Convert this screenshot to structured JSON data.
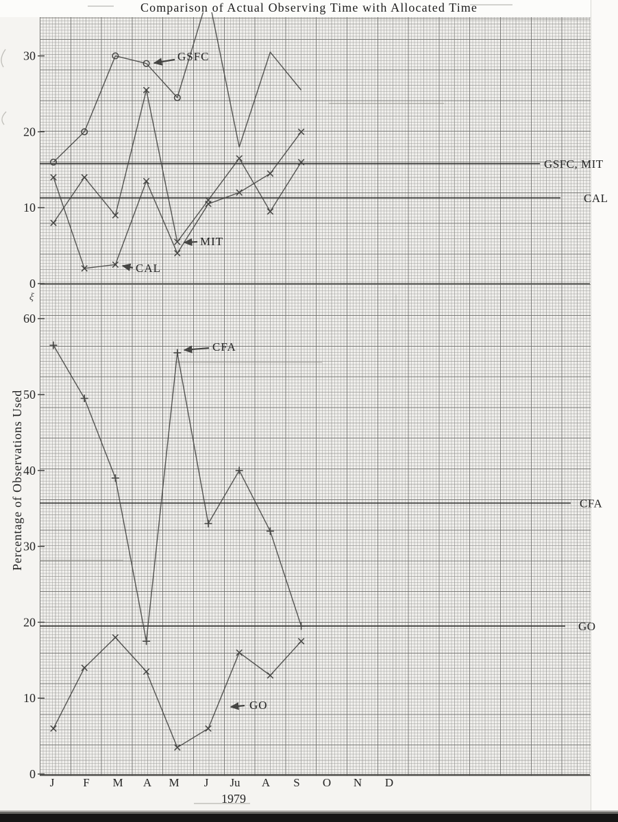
{
  "page": {
    "title": "Comparison of Actual Observing Time with Allocated Time",
    "x_axis_year": "1979",
    "y_axis_label": "Percentage of Observations Used",
    "stray_mark": "ξ"
  },
  "months": [
    "J",
    "F",
    "M",
    "A",
    "M",
    "J",
    "Ju",
    "A",
    "S",
    "O",
    "N",
    "D"
  ],
  "chart_data": [
    {
      "type": "line",
      "panel": "top",
      "title": "Comparison of Actual Observing Time with Allocated Time",
      "xlabel": "1979",
      "ylabel": "Percentage of Observations Used",
      "categories": [
        "J",
        "F",
        "M",
        "A",
        "M",
        "J",
        "Ju",
        "A",
        "S"
      ],
      "yticks": [
        0,
        10,
        20,
        30
      ],
      "ylim": [
        0,
        31
      ],
      "grid": true,
      "series": [
        {
          "name": "GSFC",
          "marker": "circle",
          "marker_count": 5,
          "values": [
            16,
            20,
            30,
            29,
            24.5,
            38,
            18,
            30.5,
            25.5
          ],
          "note": "June peak runs off the top of the grid; line clipped at paper edge"
        },
        {
          "name": "MIT",
          "marker": "x",
          "values": [
            8,
            14,
            9,
            25.5,
            5.5,
            11,
            16.5,
            9.5,
            16
          ]
        },
        {
          "name": "CAL",
          "marker": "x",
          "values": [
            14,
            2,
            2.5,
            13.5,
            4,
            10.5,
            12,
            14.5,
            20
          ]
        }
      ],
      "allocated_lines": [
        {
          "label": "GSFC, MIT",
          "value": 15.8
        },
        {
          "label": "CAL",
          "value": 11.3
        }
      ]
    },
    {
      "type": "line",
      "panel": "bottom",
      "categories": [
        "J",
        "F",
        "M",
        "A",
        "M",
        "J",
        "Ju",
        "A",
        "S"
      ],
      "yticks": [
        0,
        10,
        20,
        30,
        40,
        50,
        60
      ],
      "ylim": [
        0,
        62
      ],
      "grid": true,
      "series": [
        {
          "name": "CFA",
          "marker": "plus",
          "values": [
            56.5,
            49.5,
            39,
            17.5,
            55.5,
            33,
            40,
            32,
            19.5
          ]
        },
        {
          "name": "GO",
          "marker": "x",
          "values": [
            6,
            14,
            18,
            13.5,
            3.5,
            6,
            16,
            13,
            17.5
          ]
        }
      ],
      "allocated_lines": [
        {
          "label": "CFA",
          "value": 35.7
        },
        {
          "label": "GO",
          "value": 19.5
        }
      ]
    }
  ],
  "callouts": [
    {
      "series": "GSFC",
      "text": "GSFC"
    },
    {
      "series": "MIT",
      "text": "MIT"
    },
    {
      "series": "CAL",
      "text": "CAL"
    },
    {
      "series": "CFA",
      "text": "CFA"
    },
    {
      "series": "GO",
      "text": "GO"
    }
  ]
}
